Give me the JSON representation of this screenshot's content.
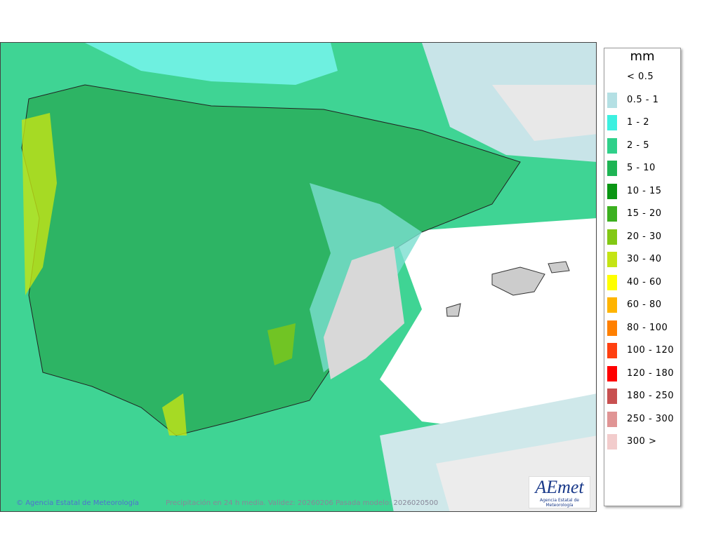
{
  "legend": {
    "unit": "mm",
    "items": [
      {
        "label": "< 0.5"
      },
      {
        "label": "0.5 - 1",
        "color": "#b4e0e4"
      },
      {
        "label": "1 - 2",
        "color": "#3cf0e0"
      },
      {
        "label": "2 - 5",
        "color": "#2fd08a"
      },
      {
        "label": "5 - 10",
        "color": "#1eb454"
      },
      {
        "label": "10 - 15",
        "color": "#0a9614"
      },
      {
        "label": "15 - 20",
        "color": "#3cb020"
      },
      {
        "label": "20 - 30",
        "color": "#82c814"
      },
      {
        "label": "30 - 40",
        "color": "#c4e414"
      },
      {
        "label": "40 - 60",
        "color": "#ffff00"
      },
      {
        "label": "60 - 80",
        "color": "#ffb400"
      },
      {
        "label": "80 - 100",
        "color": "#ff8000"
      },
      {
        "label": "100 - 120",
        "color": "#ff4010"
      },
      {
        "label": "120 - 180",
        "color": "#ff0000"
      },
      {
        "label": "180 - 250",
        "color": "#c85050"
      },
      {
        "label": "250 - 300",
        "color": "#e09494"
      },
      {
        "label": "300 >",
        "color": "#f2cccc"
      }
    ]
  },
  "footer": {
    "credit": "Agencia Estatal de Meteorología",
    "caption": "Precipitación en 24 h media. Validez: 20260206 Pasada modelo: 2026020500"
  },
  "logo": {
    "name": "AEmet",
    "subtitle": "Agencia Estatal de Meteorología"
  }
}
